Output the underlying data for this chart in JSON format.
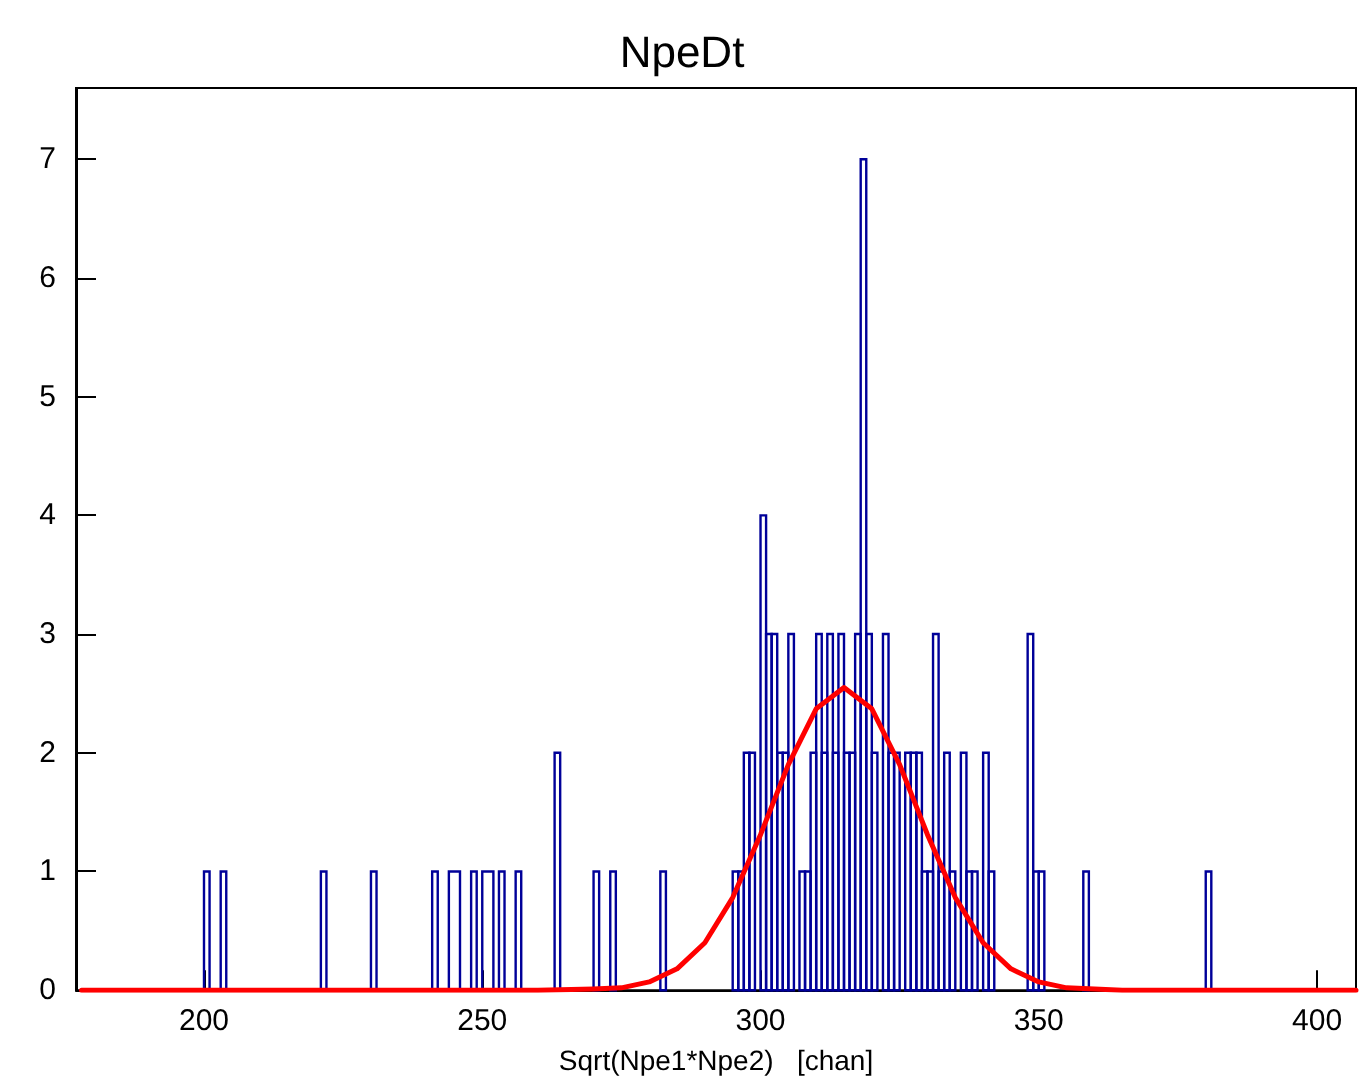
{
  "chart_data": {
    "type": "histogram",
    "title": "NpeDt",
    "xlabel": "Sqrt(Npe1*Npe2)   [chan]",
    "bins": [
      200,
      201,
      203,
      204,
      221,
      222,
      230,
      231,
      241,
      242,
      244,
      246,
      248,
      249,
      250,
      252,
      253,
      254,
      256,
      257,
      263,
      264,
      270,
      271,
      273,
      274,
      282,
      283,
      295,
      296,
      297,
      298,
      299,
      300,
      301,
      302,
      303,
      304,
      305,
      306,
      307,
      308,
      309,
      310,
      311,
      312,
      313,
      314,
      315,
      316,
      317,
      318,
      319,
      320,
      321,
      322,
      323,
      324,
      325,
      326,
      327,
      328,
      329,
      330,
      331,
      332,
      333,
      334,
      335,
      336,
      337,
      338,
      339,
      340,
      341,
      342,
      348,
      349,
      350,
      351,
      358,
      359,
      380,
      381
    ],
    "values": [
      1,
      0,
      1,
      0,
      1,
      0,
      1,
      0,
      1,
      0,
      1,
      0,
      1,
      0,
      1,
      0,
      1,
      0,
      1,
      0,
      2,
      0,
      1,
      0,
      1,
      0,
      1,
      0,
      1,
      1,
      2,
      2,
      0,
      4,
      3,
      3,
      2,
      2,
      3,
      0,
      1,
      1,
      2,
      3,
      2,
      3,
      2,
      3,
      2,
      2,
      3,
      7,
      3,
      2,
      0,
      3,
      2,
      2,
      0,
      2,
      2,
      2,
      1,
      1,
      3,
      1,
      2,
      1,
      0,
      2,
      1,
      1,
      0,
      2,
      1,
      0,
      3,
      1,
      1,
      0,
      1,
      0,
      1
    ],
    "color": "#000099",
    "series": [
      {
        "type": "line",
        "color": "#ff0000",
        "x": [
          178,
          260,
          270,
          275,
          280,
          285,
          290,
          295,
          300,
          305,
          310,
          315,
          320,
          325,
          330,
          335,
          340,
          345,
          350,
          355,
          360,
          365,
          407
        ],
        "values": [
          0,
          0,
          0.01,
          0.02,
          0.07,
          0.18,
          0.4,
          0.78,
          1.31,
          1.9,
          2.37,
          2.55,
          2.37,
          1.9,
          1.31,
          0.78,
          0.4,
          0.18,
          0.07,
          0.02,
          0.01,
          0,
          0
        ]
      }
    ],
    "xlim": [
      177,
      407
    ],
    "xticks": [
      200,
      250,
      300,
      350,
      400
    ],
    "ylim": [
      0,
      7.6
    ],
    "yticks": [
      0,
      1,
      2,
      3,
      4,
      5,
      6,
      7
    ],
    "grid": false,
    "marker": "none",
    "line_style": "solid"
  }
}
